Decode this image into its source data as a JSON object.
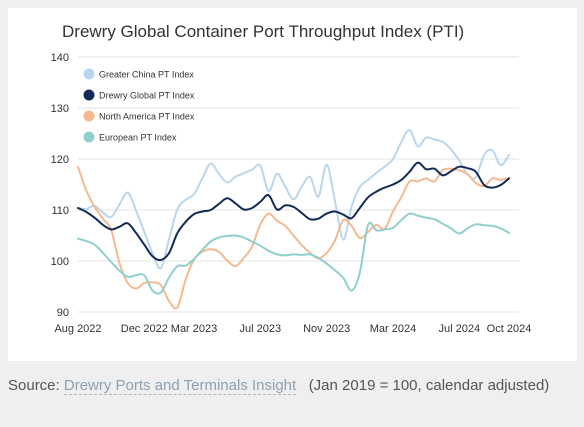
{
  "chart_data": {
    "type": "line",
    "title": "Drewry Global Container Port Throughput Index (PTI)",
    "xlabel": "",
    "ylabel": "",
    "ylim": [
      90,
      140
    ],
    "yticks": [
      90,
      100,
      110,
      120,
      130,
      140
    ],
    "xticks": [
      {
        "month": 0,
        "label": "Aug 2022"
      },
      {
        "month": 4,
        "label": "Dec 2022"
      },
      {
        "month": 7,
        "label": "Mar 2023"
      },
      {
        "month": 11,
        "label": "Jul 2023"
      },
      {
        "month": 15,
        "label": "Nov 2023"
      },
      {
        "month": 19,
        "label": "Mar 2024"
      },
      {
        "month": 23,
        "label": "Jul 2024"
      },
      {
        "month": 26,
        "label": "Oct 2024"
      }
    ],
    "legend_position": "top-left",
    "grid": "horizontal",
    "x_months": [
      0,
      0.5,
      1,
      1.5,
      2,
      2.5,
      3,
      3.5,
      4,
      4.5,
      5,
      5.5,
      6,
      6.5,
      7,
      7.5,
      8,
      8.5,
      9,
      9.5,
      10,
      10.5,
      11,
      11.5,
      12,
      12.5,
      13,
      13.5,
      14,
      14.5,
      15,
      15.5,
      16,
      16.5,
      17,
      17.5,
      18,
      18.5,
      19,
      19.5,
      20,
      20.5,
      21,
      21.5,
      22,
      22.5,
      23,
      23.5,
      24,
      24.5,
      25,
      25.5,
      26
    ],
    "series": [
      {
        "name": "Greater China PT Index",
        "color": "#bad6ee",
        "values": [
          110.4,
          110.2,
          110.8,
          109.5,
          108.6,
          111.1,
          113.4,
          109.9,
          105.7,
          101.5,
          98.6,
          104.4,
          110.2,
          112.0,
          113.1,
          116.2,
          119.1,
          117.1,
          115.4,
          116.5,
          117.2,
          117.9,
          118.7,
          113.7,
          117.1,
          114.6,
          112.1,
          114.6,
          116.5,
          112.6,
          118.9,
          111.8,
          104.2,
          110.6,
          114.5,
          115.9,
          117.3,
          118.5,
          120.0,
          123.3,
          125.7,
          122.5,
          124.2,
          123.8,
          123.4,
          121.9,
          119.7,
          117.0,
          116.4,
          120.8,
          121.7,
          118.8,
          120.8
        ]
      },
      {
        "name": "Drewry Global PT Index",
        "color": "#122a56",
        "values": [
          110.4,
          109.6,
          108.5,
          107.1,
          106.2,
          106.7,
          107.4,
          105.5,
          103.2,
          100.9,
          100.2,
          101.6,
          105.5,
          107.7,
          109.2,
          109.7,
          110.0,
          111.2,
          112.3,
          111.3,
          110.1,
          110.4,
          111.6,
          112.9,
          110.1,
          110.9,
          110.6,
          109.4,
          108.2,
          108.3,
          109.3,
          109.7,
          109.1,
          108.4,
          110.4,
          112.5,
          113.6,
          114.4,
          115.0,
          115.9,
          117.5,
          119.3,
          118.0,
          118.1,
          116.8,
          117.6,
          118.5,
          118.2,
          117.5,
          114.9,
          114.4,
          114.9,
          116.2
        ]
      },
      {
        "name": "North America PT Index",
        "color": "#f4b990",
        "values": [
          118.5,
          113.8,
          110.6,
          108.3,
          106.1,
          99.6,
          95.7,
          94.6,
          95.7,
          95.8,
          95.3,
          92.1,
          90.9,
          96.5,
          100.3,
          101.8,
          102.3,
          101.8,
          100.1,
          99.0,
          100.6,
          102.8,
          107.2,
          109.3,
          107.9,
          106.9,
          105.0,
          103.1,
          101.6,
          100.5,
          101.6,
          104.0,
          108.0,
          106.9,
          104.5,
          105.7,
          107.1,
          106.3,
          109.7,
          112.5,
          115.6,
          115.6,
          116.2,
          115.6,
          117.8,
          118.1,
          117.8,
          117.0,
          115.3,
          114.7,
          116.2,
          115.9,
          116.3
        ]
      },
      {
        "name": "European PT Index",
        "color": "#8fd0cf",
        "values": [
          104.4,
          103.9,
          103.2,
          101.6,
          99.8,
          98.1,
          96.9,
          97.2,
          97.2,
          94.2,
          93.8,
          96.8,
          99.0,
          99.1,
          100.4,
          102.2,
          103.8,
          104.6,
          104.9,
          105.0,
          104.6,
          103.8,
          103.0,
          102.0,
          101.3,
          101.1,
          101.3,
          101.2,
          101.3,
          100.6,
          99.5,
          98.2,
          96.7,
          94.2,
          97.7,
          107.1,
          106.0,
          106.2,
          106.5,
          108.0,
          109.3,
          108.9,
          108.5,
          108.2,
          107.3,
          106.4,
          105.4,
          106.4,
          107.2,
          107.0,
          106.9,
          106.4,
          105.5
        ]
      }
    ]
  },
  "footer": {
    "prefix": "Source: ",
    "link_text": "Drewry Ports and Terminals Insight",
    "suffix": "   (Jan 2019 = 100, calendar adjusted)"
  }
}
